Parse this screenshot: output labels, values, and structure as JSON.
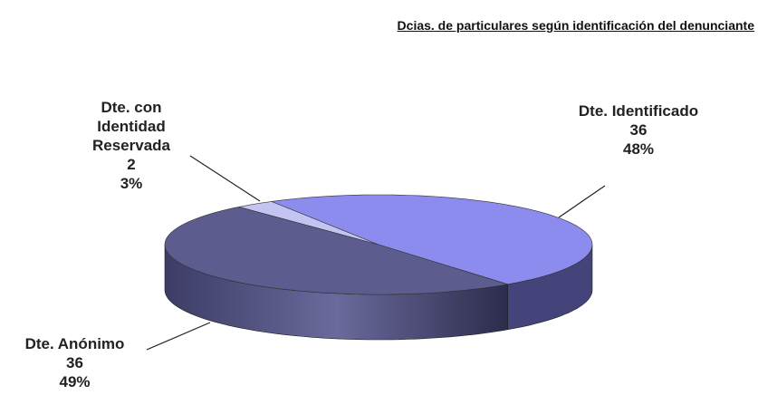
{
  "chart_data": {
    "type": "pie3d",
    "title": "Dcias. de particulares según identificación del denunciante",
    "categories": [
      "Dte. con Identidad Reservada",
      "Dte. Identificado",
      "Dte. Anónimo"
    ],
    "counts": [
      2,
      36,
      36
    ],
    "values": [
      3,
      48,
      49
    ],
    "value_labels": [
      "3%",
      "48%",
      "49%"
    ],
    "colors": [
      "#c4c4f2",
      "#8c8cee",
      "#5c5c8e"
    ]
  }
}
